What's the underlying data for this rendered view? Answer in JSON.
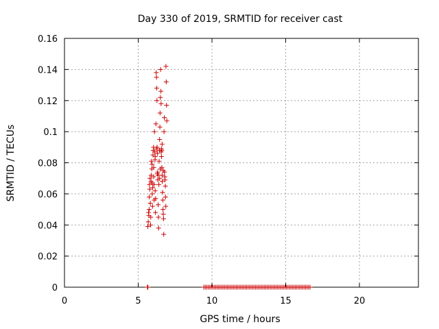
{
  "chart_data": {
    "type": "scatter",
    "title": "Day 330 of 2019, SRMTID for receiver cast",
    "xlabel": "GPS time / hours",
    "ylabel": "SRMTID / TECUs",
    "xlim": [
      0,
      24
    ],
    "ylim": [
      0,
      0.16
    ],
    "xticks": [
      0,
      5,
      10,
      15,
      20
    ],
    "xtick_labels": [
      "0",
      "5",
      "10",
      "15",
      "20"
    ],
    "yticks": [
      0,
      0.02,
      0.04,
      0.06,
      0.08,
      0.1,
      0.12,
      0.14,
      0.16
    ],
    "ytick_labels": [
      "0",
      "0.02",
      "0.04",
      "0.06",
      "0.08",
      "0.1",
      "0.12",
      "0.14",
      "0.16"
    ],
    "grid": true,
    "legend": "none",
    "marker": "plus",
    "color": "#cc0000",
    "series": [
      {
        "points": [
          [
            5.62,
            0.0
          ],
          [
            5.66,
            0.0
          ],
          [
            5.65,
            0.039
          ],
          [
            5.68,
            0.042
          ],
          [
            5.7,
            0.048
          ],
          [
            5.72,
            0.046
          ],
          [
            5.74,
            0.05
          ],
          [
            5.75,
            0.058
          ],
          [
            5.76,
            0.066
          ],
          [
            5.78,
            0.063
          ],
          [
            5.8,
            0.07
          ],
          [
            5.82,
            0.054
          ],
          [
            5.84,
            0.04
          ],
          [
            5.85,
            0.045
          ],
          [
            5.87,
            0.068
          ],
          [
            5.88,
            0.072
          ],
          [
            5.9,
            0.081
          ],
          [
            5.92,
            0.076
          ],
          [
            5.94,
            0.079
          ],
          [
            5.95,
            0.06
          ],
          [
            5.97,
            0.052
          ],
          [
            5.98,
            0.064
          ],
          [
            6.0,
            0.085
          ],
          [
            6.02,
            0.088
          ],
          [
            6.04,
            0.09
          ],
          [
            6.05,
            0.071
          ],
          [
            6.07,
            0.066
          ],
          [
            6.08,
            0.056
          ],
          [
            6.1,
            0.1
          ],
          [
            6.12,
            0.087
          ],
          [
            6.14,
            0.082
          ],
          [
            6.15,
            0.062
          ],
          [
            6.17,
            0.048
          ],
          [
            6.18,
            0.057
          ],
          [
            6.2,
            0.105
          ],
          [
            6.22,
            0.138
          ],
          [
            6.24,
            0.135
          ],
          [
            6.25,
            0.128
          ],
          [
            6.27,
            0.12
          ],
          [
            6.28,
            0.09
          ],
          [
            6.3,
            0.086
          ],
          [
            6.32,
            0.074
          ],
          [
            6.33,
            0.069
          ],
          [
            6.35,
            0.053
          ],
          [
            6.37,
            0.045
          ],
          [
            6.38,
            0.038
          ],
          [
            6.4,
            0.066
          ],
          [
            6.42,
            0.081
          ],
          [
            6.44,
            0.088
          ],
          [
            6.45,
            0.095
          ],
          [
            6.47,
            0.103
          ],
          [
            6.48,
            0.112
          ],
          [
            6.5,
            0.122
          ],
          [
            6.52,
            0.14
          ],
          [
            6.54,
            0.126
          ],
          [
            6.55,
            0.118
          ],
          [
            6.57,
            0.089
          ],
          [
            6.58,
            0.084
          ],
          [
            6.6,
            0.077
          ],
          [
            6.62,
            0.072
          ],
          [
            6.63,
            0.068
          ],
          [
            6.65,
            0.061
          ],
          [
            6.67,
            0.056
          ],
          [
            6.68,
            0.05
          ],
          [
            6.7,
            0.047
          ],
          [
            6.72,
            0.044
          ],
          [
            6.73,
            0.034
          ],
          [
            6.75,
            0.1
          ],
          [
            6.77,
            0.109
          ],
          [
            6.78,
            0.074
          ],
          [
            6.8,
            0.071
          ],
          [
            6.82,
            0.069
          ],
          [
            6.84,
            0.065
          ],
          [
            6.85,
            0.058
          ],
          [
            6.87,
            0.052
          ],
          [
            6.88,
            0.142
          ],
          [
            6.9,
            0.132
          ],
          [
            6.92,
            0.117
          ],
          [
            6.94,
            0.107
          ],
          [
            6.3,
            0.073
          ],
          [
            6.35,
            0.072
          ],
          [
            6.45,
            0.07
          ],
          [
            6.5,
            0.076
          ],
          [
            6.55,
            0.087
          ],
          [
            6.6,
            0.088
          ],
          [
            6.25,
            0.089
          ],
          [
            6.15,
            0.084
          ],
          [
            6.05,
            0.077
          ],
          [
            5.95,
            0.067
          ],
          [
            6.62,
            0.092
          ],
          [
            6.7,
            0.075
          ],
          [
            9.45,
            0.0
          ],
          [
            9.55,
            0.0
          ],
          [
            9.65,
            0.0
          ],
          [
            9.75,
            0.0
          ],
          [
            9.85,
            0.0
          ],
          [
            9.95,
            0.0
          ],
          [
            10.05,
            0.0
          ],
          [
            10.15,
            0.0
          ],
          [
            10.25,
            0.0
          ],
          [
            10.35,
            0.0
          ],
          [
            10.45,
            0.0
          ],
          [
            10.55,
            0.0
          ],
          [
            10.65,
            0.0
          ],
          [
            10.75,
            0.0
          ],
          [
            10.85,
            0.0
          ],
          [
            10.95,
            0.0
          ],
          [
            11.05,
            0.0
          ],
          [
            11.15,
            0.0
          ],
          [
            11.25,
            0.0
          ],
          [
            11.35,
            0.0
          ],
          [
            11.45,
            0.0
          ],
          [
            11.55,
            0.0
          ],
          [
            11.65,
            0.0
          ],
          [
            11.75,
            0.0
          ],
          [
            11.85,
            0.0
          ],
          [
            11.95,
            0.0
          ],
          [
            12.05,
            0.0
          ],
          [
            12.15,
            0.0
          ],
          [
            12.25,
            0.0
          ],
          [
            12.35,
            0.0
          ],
          [
            12.45,
            0.0
          ],
          [
            12.55,
            0.0
          ],
          [
            12.65,
            0.0
          ],
          [
            12.75,
            0.0
          ],
          [
            12.85,
            0.0
          ],
          [
            12.95,
            0.0
          ],
          [
            13.05,
            0.0
          ],
          [
            13.15,
            0.0
          ],
          [
            13.25,
            0.0
          ],
          [
            13.35,
            0.0
          ],
          [
            13.45,
            0.0
          ],
          [
            13.55,
            0.0
          ],
          [
            13.65,
            0.0
          ],
          [
            13.75,
            0.0
          ],
          [
            13.85,
            0.0
          ],
          [
            13.95,
            0.0
          ],
          [
            14.05,
            0.0
          ],
          [
            14.15,
            0.0
          ],
          [
            14.25,
            0.0
          ],
          [
            14.35,
            0.0
          ],
          [
            14.45,
            0.0
          ],
          [
            14.55,
            0.0
          ],
          [
            14.65,
            0.0
          ],
          [
            14.75,
            0.0
          ],
          [
            14.85,
            0.0
          ],
          [
            14.95,
            0.0
          ],
          [
            15.05,
            0.0
          ],
          [
            15.15,
            0.0
          ],
          [
            15.25,
            0.0
          ],
          [
            15.35,
            0.0
          ],
          [
            15.45,
            0.0
          ],
          [
            15.55,
            0.0
          ],
          [
            15.65,
            0.0
          ],
          [
            15.75,
            0.0
          ],
          [
            15.85,
            0.0
          ],
          [
            15.95,
            0.0
          ],
          [
            16.05,
            0.0
          ],
          [
            16.15,
            0.0
          ],
          [
            16.25,
            0.0
          ],
          [
            16.35,
            0.0
          ],
          [
            16.45,
            0.0
          ],
          [
            16.55,
            0.0
          ],
          [
            16.65,
            0.0
          ]
        ]
      }
    ]
  }
}
